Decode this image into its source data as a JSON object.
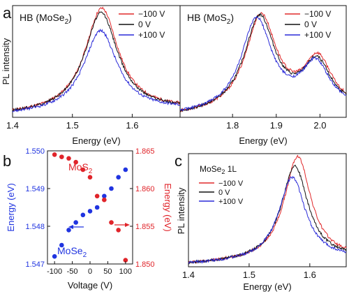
{
  "panel_letters": {
    "a": "a",
    "b": "b",
    "c": "c"
  },
  "colors": {
    "red": "#e0282a",
    "black": "#111111",
    "blue": "#2a2ad8",
    "dot_blue": "#2034e0",
    "dot_red": "#e0242a"
  },
  "chart_data": [
    {
      "id": "a-left",
      "type": "line",
      "title": "HB (MoSe",
      "title_sub": "2",
      "title_end": ")",
      "ylabel": "PL intensity",
      "xlabel": "Energy (eV)",
      "xlim": [
        1.4,
        1.68
      ],
      "xticks": [
        "1.4",
        "1.5",
        "1.6"
      ],
      "xtick_values": [
        1.4,
        1.5,
        1.6
      ],
      "legend": [
        "−100 V",
        "0  V",
        "+100 V"
      ],
      "series": [
        {
          "name": "−100 V",
          "color": "#e0282a",
          "peaks": [
            {
              "c": 1.549,
              "w": 0.043,
              "a": 0.93
            }
          ],
          "base": 0.02
        },
        {
          "name": "0  V",
          "color": "#111111",
          "peaks": [
            {
              "c": 1.548,
              "w": 0.043,
              "a": 0.89
            }
          ],
          "base": 0.02
        },
        {
          "name": "+100 V",
          "color": "#2a2ad8",
          "peaks": [
            {
              "c": 1.547,
              "w": 0.043,
              "a": 0.73
            }
          ],
          "base": 0.02
        }
      ]
    },
    {
      "id": "a-right",
      "type": "line",
      "title": "HB (MoS",
      "title_sub": "2",
      "title_end": ")",
      "xlabel": "Energy (eV)",
      "xlim": [
        1.68,
        2.06
      ],
      "xticks": [
        "1.8",
        "1.9",
        "2.0"
      ],
      "xtick_values": [
        1.8,
        1.9,
        2.0
      ],
      "legend": [
        "−100 V",
        "0  V",
        "+100 V"
      ],
      "series": [
        {
          "name": "−100 V",
          "color": "#e0282a",
          "peaks": [
            {
              "c": 1.865,
              "w": 0.055,
              "a": 0.86
            },
            {
              "c": 1.995,
              "w": 0.05,
              "a": 0.44
            }
          ],
          "base": 0.01
        },
        {
          "name": "0  V",
          "color": "#111111",
          "peaks": [
            {
              "c": 1.862,
              "w": 0.055,
              "a": 0.85
            },
            {
              "c": 1.993,
              "w": 0.05,
              "a": 0.41
            }
          ],
          "base": 0.01
        },
        {
          "name": "+100 V",
          "color": "#2a2ad8",
          "peaks": [
            {
              "c": 1.855,
              "w": 0.055,
              "a": 0.83
            },
            {
              "c": 1.99,
              "w": 0.05,
              "a": 0.4
            }
          ],
          "base": 0.01
        }
      ]
    },
    {
      "id": "b",
      "type": "scatter",
      "xlabel": "Voltage (V)",
      "ylabel": "Energy (eV)",
      "y2label": "Energy (eV)",
      "xlim": [
        -120,
        120
      ],
      "xticks": [
        "-100",
        "-50",
        "0",
        "50",
        "100"
      ],
      "xtick_values": [
        -100,
        -50,
        0,
        50,
        100
      ],
      "ylim": [
        1.547,
        1.55
      ],
      "yticks": [
        "1.547",
        "1.548",
        "1.549",
        "1.550"
      ],
      "ytick_values": [
        1.547,
        1.548,
        1.549,
        1.55
      ],
      "y2lim": [
        1.85,
        1.865
      ],
      "y2ticks": [
        "1.850",
        "1.855",
        "1.860",
        "1.865"
      ],
      "y2tick_values": [
        1.85,
        1.855,
        1.86,
        1.865
      ],
      "labels": {
        "mos2": "MoS",
        "mos2_sub": "2",
        "mose2": "MoSe",
        "mose2_sub": "2"
      },
      "series": [
        {
          "name": "MoSe2",
          "axis": "left",
          "color": "#2034e0",
          "x": [
            -100,
            -80,
            -60,
            -40,
            -20,
            0,
            20,
            40,
            60,
            80,
            100
          ],
          "y": [
            1.5472,
            1.5475,
            1.5479,
            1.5481,
            1.5483,
            1.5484,
            1.5485,
            1.5488,
            1.549,
            1.5493,
            1.5495
          ]
        },
        {
          "name": "MoS2",
          "axis": "right",
          "color": "#e0242a",
          "x": [
            -100,
            -80,
            -60,
            -40,
            -20,
            0,
            20,
            40,
            60,
            80,
            100
          ],
          "y": [
            1.8645,
            1.8642,
            1.864,
            1.8635,
            1.8625,
            1.8615,
            1.859,
            1.8585,
            1.8555,
            1.8545,
            1.8505
          ]
        }
      ]
    },
    {
      "id": "c",
      "type": "line",
      "title": "MoSe",
      "title_sub": "2",
      "title_end": " 1L",
      "ylabel": "PL intensity",
      "xlabel": "Energy (eV)",
      "xlim": [
        1.4,
        1.66
      ],
      "xticks": [
        "1.4",
        "1.5",
        "1.6"
      ],
      "xtick_values": [
        1.4,
        1.5,
        1.6
      ],
      "legend": [
        "−100 V",
        "0 V",
        "+100 V"
      ],
      "series": [
        {
          "name": "−100 V",
          "color": "#e0282a",
          "peaks": [
            {
              "c": 1.58,
              "w": 0.034,
              "a": 0.92
            }
          ],
          "base": 0.02
        },
        {
          "name": "0 V",
          "color": "#111111",
          "peaks": [
            {
              "c": 1.575,
              "w": 0.034,
              "a": 0.84
            }
          ],
          "base": 0.02
        },
        {
          "name": "+100 V",
          "color": "#2a2ad8",
          "peaks": [
            {
              "c": 1.571,
              "w": 0.034,
              "a": 0.74
            }
          ],
          "base": 0.02
        }
      ]
    }
  ]
}
